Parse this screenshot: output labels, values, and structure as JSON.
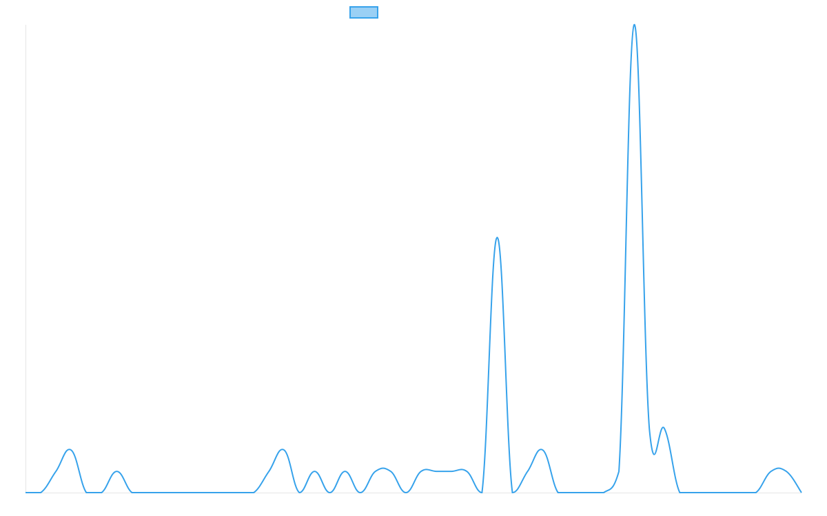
{
  "chart_data": {
    "type": "line",
    "title": "",
    "xlabel": "",
    "ylabel": "",
    "legend": {
      "position": "top",
      "entries": [
        {
          "label": ""
        }
      ]
    },
    "grid": false,
    "x": [
      0,
      1,
      2,
      3,
      4,
      5,
      6,
      7,
      8,
      9,
      10,
      11,
      12,
      13,
      14,
      15,
      16,
      17,
      18,
      19,
      20,
      21,
      22,
      23,
      24,
      25,
      26,
      27,
      28,
      29,
      30,
      31,
      32,
      33,
      34,
      35,
      36,
      37,
      38,
      39,
      40,
      41,
      42,
      43,
      44,
      45,
      46,
      47,
      48,
      49,
      50,
      51
    ],
    "xlim": [
      0,
      51
    ],
    "ylim": [
      0,
      22
    ],
    "series": [
      {
        "color": "#36a2eb",
        "fill_color": "#9ad0f5",
        "values": [
          0,
          0,
          1,
          2,
          0,
          0,
          1,
          0,
          0,
          0,
          0,
          0,
          0,
          0,
          0,
          0,
          1,
          2,
          0,
          1,
          0,
          1,
          0,
          1,
          1,
          0,
          1,
          1,
          1,
          1,
          0,
          12,
          0,
          1,
          2,
          0,
          0,
          0,
          0,
          1,
          22,
          3,
          3,
          0,
          0,
          0,
          0,
          0,
          0,
          1,
          1,
          0
        ]
      }
    ],
    "colors": {
      "axis": "#e5e5e5",
      "line": "#36a2eb",
      "legend_fill": "#9ad0f5"
    }
  }
}
